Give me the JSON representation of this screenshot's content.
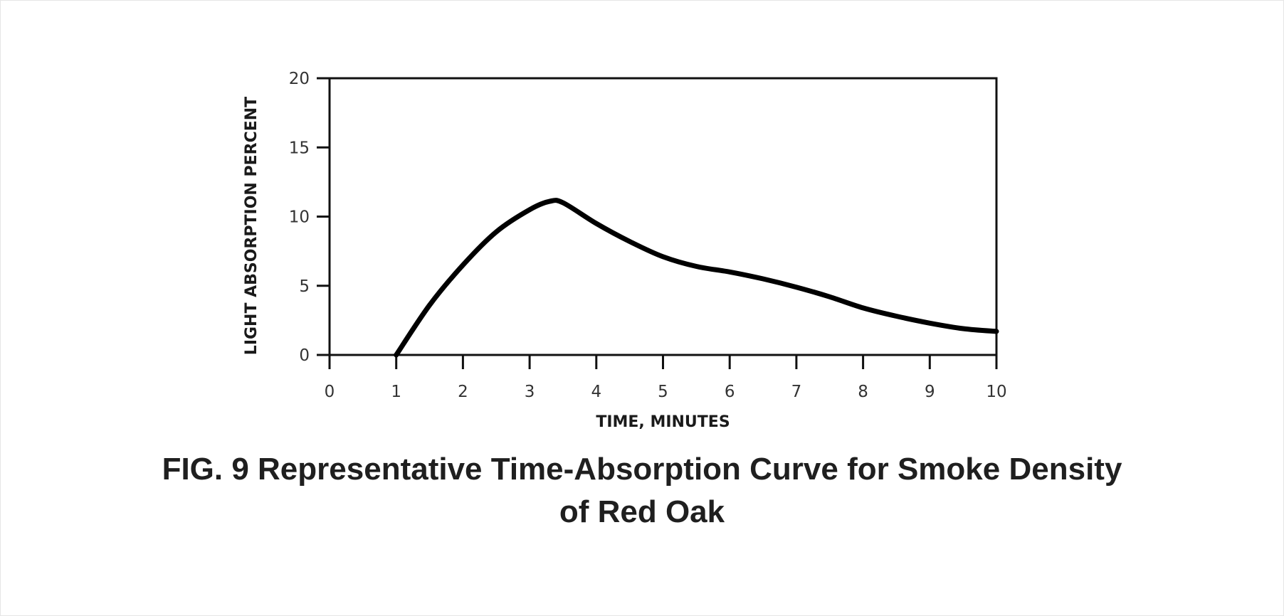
{
  "chart_data": {
    "type": "line",
    "xlabel": "TIME, MINUTES",
    "ylabel": "LIGHT ABSORPTION PERCENT",
    "xlim": [
      0,
      10
    ],
    "ylim": [
      0,
      20
    ],
    "xticks": [
      0,
      1,
      2,
      3,
      4,
      5,
      6,
      7,
      8,
      9,
      10
    ],
    "yticks": [
      0,
      5,
      10,
      15,
      20
    ],
    "grid": false,
    "series": [
      {
        "x": [
          1.0,
          1.5,
          2.0,
          2.5,
          3.0,
          3.3,
          3.5,
          4.0,
          4.5,
          5.0,
          5.5,
          6.0,
          6.5,
          7.0,
          7.5,
          8.0,
          8.5,
          9.0,
          9.5,
          10.0
        ],
        "y": [
          0.0,
          3.6,
          6.5,
          8.9,
          10.5,
          11.1,
          11.0,
          9.5,
          8.2,
          7.1,
          6.4,
          6.0,
          5.5,
          4.9,
          4.2,
          3.4,
          2.8,
          2.3,
          1.9,
          1.7
        ]
      }
    ]
  },
  "caption": {
    "line1": "FIG. 9  Representative Time-Absorption Curve for Smoke Density",
    "line2": "of Red Oak"
  }
}
